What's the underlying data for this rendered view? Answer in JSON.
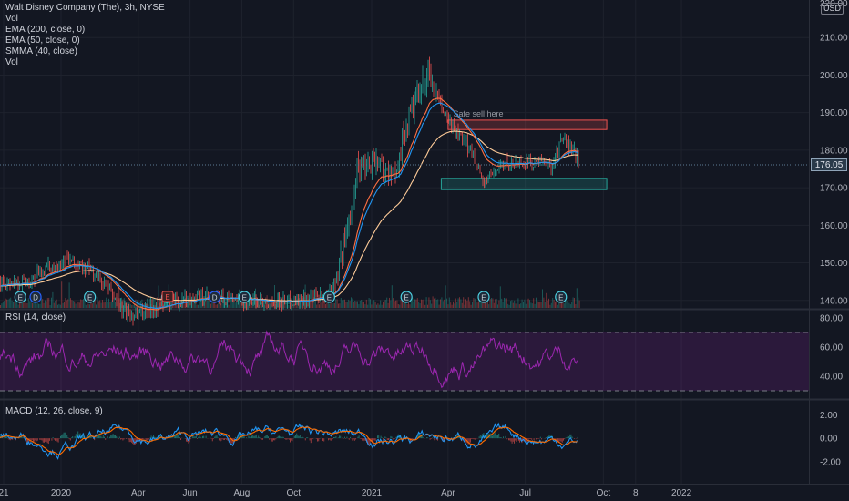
{
  "legend": {
    "title": "Walt Disney Company (The), 3h, NYSE",
    "items": [
      "Vol",
      "EMA (200, close, 0)",
      "EMA (50, close, 0)",
      "SMMA (40, close)",
      "Vol"
    ]
  },
  "currency": "USD",
  "last_price": "176.05",
  "annotation": "Safe sell here",
  "rsi_label": "RSI (14, close)",
  "macd_label": "MACD (12, 26, close, 9)",
  "colors": {
    "background": "#131722",
    "up": "#26a69a",
    "down": "#ef5350",
    "ema200": "#ffcc99",
    "ema50": "#ff7043",
    "smma": "#2196f3",
    "rsi": "#9c27b0",
    "macd": "#2196f3",
    "signal": "#ff6d00"
  },
  "chart_data": [
    {
      "type": "candlestick",
      "price_ticks": [
        "210.00",
        "200.00",
        "190.00",
        "180.00",
        "170.00",
        "160.00",
        "150.00",
        "140.00"
      ],
      "top_tick_partial": "220.00",
      "ylim": [
        138,
        220
      ],
      "x_ticks": [
        "21",
        "2020",
        "Apr",
        "Jun",
        "Aug",
        "Oct",
        "2021",
        "Apr",
        "Jul",
        "Oct",
        "8",
        "2022"
      ],
      "price_path": [
        {
          "date": "2019-11-25",
          "price": 145
        },
        {
          "date": "2019-12-10",
          "price": 148
        },
        {
          "date": "2020-01-06",
          "price": 151
        },
        {
          "date": "2020-01-22",
          "price": 149
        },
        {
          "date": "2020-02-05",
          "price": 148
        },
        {
          "date": "2020-02-25",
          "price": 143
        },
        {
          "date": "2020-03-12",
          "price": 138
        },
        {
          "date": "2020-03-23",
          "price": 136
        },
        {
          "date": "2020-05-01",
          "price": 139
        },
        {
          "date": "2020-06-08",
          "price": 141
        },
        {
          "date": "2020-08-01",
          "price": 140
        },
        {
          "date": "2020-10-01",
          "price": 140
        },
        {
          "date": "2020-11-09",
          "price": 141
        },
        {
          "date": "2020-11-24",
          "price": 150
        },
        {
          "date": "2020-12-04",
          "price": 160
        },
        {
          "date": "2020-12-14",
          "price": 175
        },
        {
          "date": "2021-01-05",
          "price": 178
        },
        {
          "date": "2021-01-25",
          "price": 172
        },
        {
          "date": "2021-02-12",
          "price": 188
        },
        {
          "date": "2021-03-08",
          "price": 200
        },
        {
          "date": "2021-03-22",
          "price": 192
        },
        {
          "date": "2021-04-12",
          "price": 184
        },
        {
          "date": "2021-05-01",
          "price": 179
        },
        {
          "date": "2021-05-12",
          "price": 171
        },
        {
          "date": "2021-06-01",
          "price": 176
        },
        {
          "date": "2021-07-01",
          "price": 177
        },
        {
          "date": "2021-08-01",
          "price": 176
        },
        {
          "date": "2021-08-13",
          "price": 183
        },
        {
          "date": "2021-09-01",
          "price": 178
        },
        {
          "date": "2021-09-13",
          "price": 173
        },
        {
          "date": "2021-09-20",
          "price": 176
        }
      ],
      "zones": [
        {
          "label": "Safe sell here",
          "from": "2021-04-01",
          "to": "2021-10-05",
          "price_low": 185.5,
          "price_high": 188,
          "color": "#ef5350"
        },
        {
          "label": "",
          "from": "2021-03-24",
          "to": "2021-10-05",
          "price_low": 169.5,
          "price_high": 172.5,
          "color": "#26a69a"
        }
      ],
      "events": [
        {
          "date": "2019-11-14",
          "label": "E"
        },
        {
          "date": "2019-12-02",
          "label": "D"
        },
        {
          "date": "2020-02-04",
          "label": "E"
        },
        {
          "date": "2020-05-05",
          "label": "E"
        },
        {
          "date": "2020-06-30",
          "label": "D"
        },
        {
          "date": "2020-08-04",
          "label": "E"
        },
        {
          "date": "2020-11-12",
          "label": "E"
        },
        {
          "date": "2021-02-11",
          "label": "E"
        },
        {
          "date": "2021-05-13",
          "label": "E"
        },
        {
          "date": "2021-08-12",
          "label": "E"
        }
      ]
    },
    {
      "type": "line",
      "name": "RSI (14, close)",
      "ticks": [
        "80.00",
        "60.00",
        "40.00"
      ],
      "ylim": [
        25,
        85
      ],
      "bands": [
        70,
        30
      ]
    },
    {
      "type": "line",
      "name": "MACD (12, 26, close, 9)",
      "ticks": [
        "2.00",
        "0.00",
        "-2.00"
      ],
      "ylim": [
        -3.8,
        3.2
      ]
    }
  ]
}
